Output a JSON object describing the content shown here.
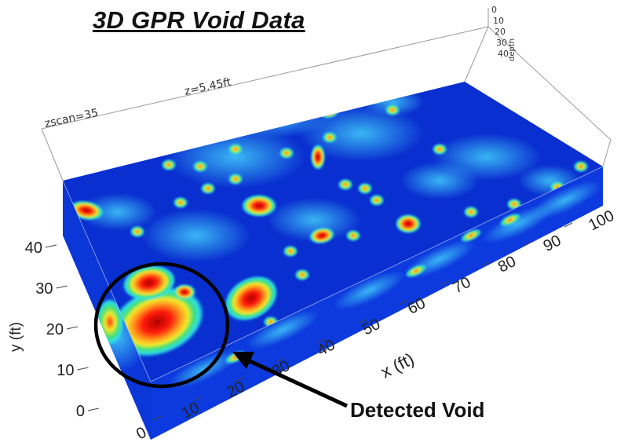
{
  "title": "3D GPR Void Data",
  "annotation": {
    "label": "Detected Void"
  },
  "scan_info": {
    "zscan": "zscan=35",
    "z_value": "z=5.45ft"
  },
  "axes": {
    "x": {
      "label": "x (ft)",
      "ticks": [
        "0",
        "10",
        "20",
        "30",
        "40",
        "50",
        "60",
        "70",
        "80",
        "90",
        "100"
      ]
    },
    "y": {
      "label": "y (ft)",
      "ticks": [
        "0",
        "10",
        "20",
        "30",
        "40"
      ]
    },
    "z": {
      "label": "depth",
      "ticks": [
        "0",
        "10",
        "20",
        "30",
        "40"
      ]
    }
  },
  "colormap": [
    "#0a2fd0",
    "#1f63f0",
    "#3aa0f6",
    "#2fe0e8",
    "#3fe07a",
    "#f2ea2a",
    "#ff7a12",
    "#ff1a0a",
    "#8a0000"
  ]
}
